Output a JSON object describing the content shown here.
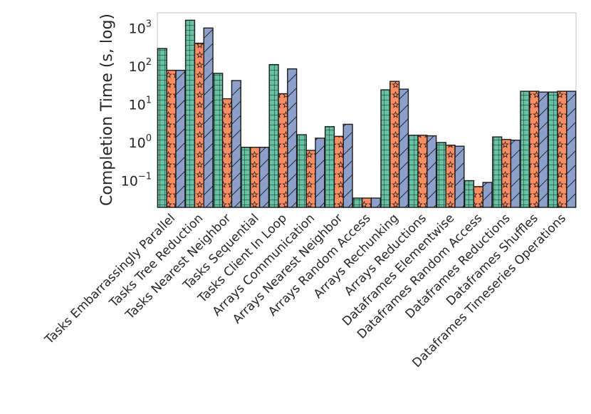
{
  "chart_data": {
    "type": "bar",
    "title": "",
    "xlabel": "",
    "ylabel": "Completion Time (s, log)",
    "yscale": "log",
    "ylim": [
      0.02,
      2500
    ],
    "yticks": [
      {
        "value": 0.1,
        "base": "10",
        "exp": "−1"
      },
      {
        "value": 1,
        "base": "10",
        "exp": "0"
      },
      {
        "value": 10,
        "base": "10",
        "exp": "1"
      },
      {
        "value": 100,
        "base": "10",
        "exp": "2"
      },
      {
        "value": 1000,
        "base": "10",
        "exp": "3"
      }
    ],
    "grid": false,
    "legend": "none",
    "categories": [
      "Tasks Embarrassingly Parallel",
      "Tasks Tree Reduction",
      "Tasks Nearest Neighbor",
      "Tasks Sequential",
      "Tasks Client In Loop",
      "Arrays Communication",
      "Arrays Nearest Neighbor",
      "Arrays Random Access",
      "Arrays Rechunking",
      "Arrays Reductions",
      "Dataframes Elementwise",
      "Dataframes Random Access",
      "Dataframes Reductions",
      "Dataframes Shuffles",
      "Dataframes Timeseries Operations"
    ],
    "series": [
      {
        "color": "#66c2a5",
        "pattern": "grid",
        "values": [
          290,
          1600,
          65,
          0.75,
          110,
          1.6,
          2.6,
          0.035,
          24,
          1.55,
          1.0,
          0.1,
          1.4,
          22,
          21
        ]
      },
      {
        "color": "#fc8d62",
        "pattern": "stars",
        "values": [
          78,
          400,
          14,
          0.75,
          19,
          0.62,
          1.45,
          0.035,
          40,
          1.55,
          0.85,
          0.07,
          1.2,
          22,
          22
        ]
      },
      {
        "color": "#8da0cb",
        "pattern": "hatch",
        "values": [
          78,
          1000,
          42,
          0.75,
          85,
          1.3,
          3.0,
          0.035,
          25,
          1.5,
          0.8,
          0.09,
          1.15,
          21,
          22
        ]
      }
    ]
  }
}
